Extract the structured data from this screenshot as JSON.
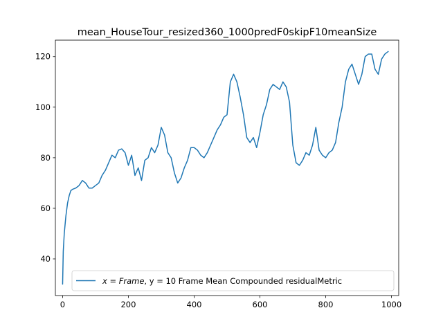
{
  "chart_data": {
    "type": "line",
    "title": "mean_HouseTour_resized360_1000predF0skipF10meanSize",
    "xlabel": "",
    "ylabel": "",
    "xlim": [
      -22,
      1022
    ],
    "ylim": [
      25.5,
      126.5
    ],
    "xticks": [
      0,
      200,
      400,
      600,
      800,
      1000
    ],
    "yticks": [
      40,
      60,
      80,
      100,
      120
    ],
    "grid": false,
    "legend": {
      "placement": "lower-right",
      "math_part": "x = Frame",
      "text_part": ", y = 10 Frame Mean Compounded residualMetric"
    },
    "series": [
      {
        "color": "#1f77b4",
        "x": [
          0,
          2,
          5,
          10,
          15,
          20,
          25,
          30,
          40,
          50,
          60,
          70,
          80,
          90,
          100,
          110,
          120,
          130,
          140,
          150,
          160,
          170,
          180,
          190,
          200,
          210,
          220,
          230,
          240,
          250,
          260,
          270,
          280,
          290,
          300,
          310,
          320,
          330,
          340,
          350,
          360,
          370,
          380,
          390,
          400,
          410,
          420,
          430,
          440,
          450,
          460,
          470,
          480,
          490,
          500,
          510,
          520,
          530,
          540,
          550,
          560,
          570,
          580,
          590,
          600,
          610,
          620,
          630,
          640,
          650,
          660,
          670,
          680,
          690,
          700,
          710,
          720,
          730,
          740,
          750,
          760,
          770,
          780,
          790,
          800,
          810,
          820,
          830,
          840,
          850,
          860,
          870,
          880,
          890,
          900,
          910,
          920,
          930,
          940,
          950,
          960,
          970,
          980,
          990
        ],
        "y": [
          30,
          43,
          50,
          57,
          62,
          65,
          67,
          67.5,
          68,
          69,
          71,
          70,
          68,
          68,
          69,
          70,
          73,
          75,
          78,
          81,
          80,
          83,
          83.5,
          82,
          77,
          81,
          73,
          76,
          71,
          79,
          80,
          84,
          82,
          85,
          92,
          89,
          82,
          80,
          74,
          70,
          72,
          76,
          79,
          84,
          84,
          83,
          81,
          80,
          82,
          85,
          88,
          91,
          93,
          96,
          97,
          110,
          113,
          110,
          104,
          97,
          88,
          86,
          88,
          84,
          90,
          97,
          101,
          107,
          109,
          108,
          107,
          110,
          108,
          102,
          85,
          78,
          77,
          79,
          82,
          81,
          85,
          92,
          83,
          81,
          80,
          82,
          83,
          86,
          94,
          100,
          110,
          115,
          117,
          113,
          109,
          113,
          120,
          121,
          121,
          115,
          113,
          119,
          121,
          122
        ]
      }
    ]
  }
}
